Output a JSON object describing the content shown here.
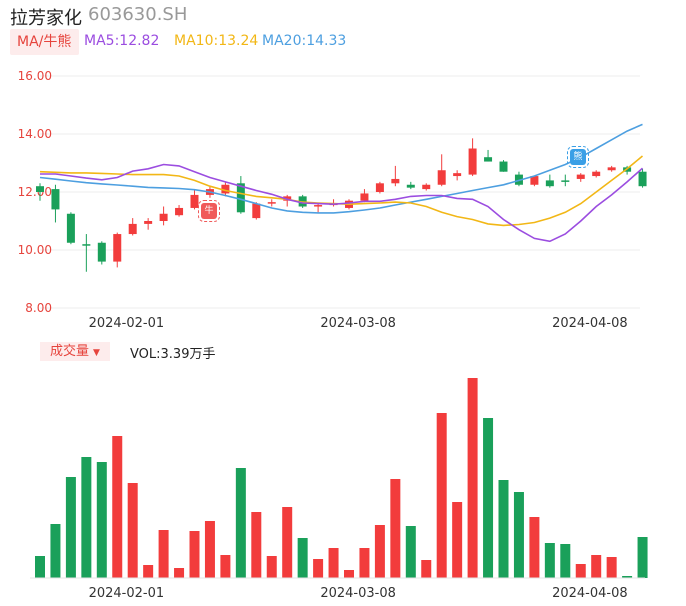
{
  "header": {
    "name": "拉芳家化",
    "code": "603630.SH"
  },
  "ma_bar": {
    "tag_label": "MA/牛熊",
    "items": [
      {
        "label": "MA5:12.82",
        "color": "#9b4de0"
      },
      {
        "label": "MA10:13.24",
        "color": "#f2b716"
      },
      {
        "label": "MA20:14.33",
        "color": "#4d9fe0"
      }
    ]
  },
  "markers": {
    "bull": "牛",
    "bear": "熊"
  },
  "volume_bar": {
    "tag_label": "成交量",
    "vol_text": "VOL:3.39万手"
  },
  "colors": {
    "up": "#f23c3c",
    "down": "#1aa05a",
    "ma5": "#9b4de0",
    "ma10": "#f2b716",
    "ma20": "#4d9fe0",
    "axis_text": "#e6443d",
    "grid": "#eeeeee"
  },
  "chart_data": {
    "type": "candlestick",
    "y_ticks": [
      "16.00",
      "14.00",
      "12.00",
      "10.00",
      "8.00"
    ],
    "ylim": [
      8,
      16
    ],
    "x_tick_labels": [
      {
        "label": "2024-02-01",
        "index": 3
      },
      {
        "label": "2024-03-08",
        "index": 18
      },
      {
        "label": "2024-04-08",
        "index": 33
      }
    ],
    "candles": [
      {
        "o": 12.2,
        "h": 12.3,
        "l": 11.7,
        "c": 12.0
      },
      {
        "o": 12.1,
        "h": 12.25,
        "l": 10.95,
        "c": 11.4
      },
      {
        "o": 11.25,
        "h": 11.3,
        "l": 10.2,
        "c": 10.25
      },
      {
        "o": 10.2,
        "h": 10.55,
        "l": 9.25,
        "c": 10.15
      },
      {
        "o": 10.25,
        "h": 10.3,
        "l": 9.5,
        "c": 9.6
      },
      {
        "o": 9.6,
        "h": 10.6,
        "l": 9.4,
        "c": 10.55
      },
      {
        "o": 10.55,
        "h": 11.1,
        "l": 10.5,
        "c": 10.9
      },
      {
        "o": 10.9,
        "h": 11.1,
        "l": 10.7,
        "c": 11.0
      },
      {
        "o": 11.0,
        "h": 11.5,
        "l": 10.85,
        "c": 11.25
      },
      {
        "o": 11.2,
        "h": 11.55,
        "l": 11.15,
        "c": 11.45
      },
      {
        "o": 11.45,
        "h": 12.05,
        "l": 11.4,
        "c": 11.9
      },
      {
        "o": 11.9,
        "h": 12.2,
        "l": 11.8,
        "c": 12.1
      },
      {
        "o": 11.95,
        "h": 12.35,
        "l": 11.85,
        "c": 12.25
      },
      {
        "o": 12.3,
        "h": 12.55,
        "l": 11.25,
        "c": 11.3
      },
      {
        "o": 11.1,
        "h": 11.65,
        "l": 11.05,
        "c": 11.6
      },
      {
        "o": 11.6,
        "h": 11.75,
        "l": 11.5,
        "c": 11.65
      },
      {
        "o": 11.7,
        "h": 11.9,
        "l": 11.5,
        "c": 11.85
      },
      {
        "o": 11.85,
        "h": 11.9,
        "l": 11.45,
        "c": 11.5
      },
      {
        "o": 11.5,
        "h": 11.6,
        "l": 11.3,
        "c": 11.55
      },
      {
        "o": 11.55,
        "h": 11.75,
        "l": 11.5,
        "c": 11.6
      },
      {
        "o": 11.45,
        "h": 11.75,
        "l": 11.4,
        "c": 11.7
      },
      {
        "o": 11.7,
        "h": 12.1,
        "l": 11.65,
        "c": 11.95
      },
      {
        "o": 12.0,
        "h": 12.35,
        "l": 11.95,
        "c": 12.3
      },
      {
        "o": 12.3,
        "h": 12.9,
        "l": 12.2,
        "c": 12.45
      },
      {
        "o": 12.25,
        "h": 12.35,
        "l": 12.1,
        "c": 12.15
      },
      {
        "o": 12.1,
        "h": 12.3,
        "l": 12.05,
        "c": 12.25
      },
      {
        "o": 12.25,
        "h": 13.3,
        "l": 12.2,
        "c": 12.75
      },
      {
        "o": 12.55,
        "h": 12.75,
        "l": 12.4,
        "c": 12.65
      },
      {
        "o": 12.6,
        "h": 13.85,
        "l": 12.55,
        "c": 13.5
      },
      {
        "o": 13.2,
        "h": 13.45,
        "l": 13.05,
        "c": 13.05
      },
      {
        "o": 13.05,
        "h": 13.1,
        "l": 12.7,
        "c": 12.7
      },
      {
        "o": 12.6,
        "h": 12.7,
        "l": 12.2,
        "c": 12.25
      },
      {
        "o": 12.25,
        "h": 12.55,
        "l": 12.2,
        "c": 12.55
      },
      {
        "o": 12.4,
        "h": 12.6,
        "l": 12.15,
        "c": 12.2
      },
      {
        "o": 12.4,
        "h": 12.6,
        "l": 12.2,
        "c": 12.35
      },
      {
        "o": 12.45,
        "h": 12.65,
        "l": 12.35,
        "c": 12.6
      },
      {
        "o": 12.55,
        "h": 12.75,
        "l": 12.5,
        "c": 12.7
      },
      {
        "o": 12.75,
        "h": 12.9,
        "l": 12.7,
        "c": 12.85
      },
      {
        "o": 12.85,
        "h": 12.9,
        "l": 12.6,
        "c": 12.7
      },
      {
        "o": 12.7,
        "h": 12.8,
        "l": 12.15,
        "c": 12.2
      }
    ],
    "ma5": [
      12.62,
      12.62,
      12.55,
      12.48,
      12.42,
      12.5,
      12.72,
      12.8,
      12.95,
      12.9,
      12.7,
      12.5,
      12.35,
      12.2,
      12.05,
      11.92,
      11.75,
      11.62,
      11.6,
      11.58,
      11.62,
      11.68,
      11.68,
      11.75,
      11.85,
      11.88,
      11.88,
      11.78,
      11.75,
      11.5,
      11.05,
      10.7,
      10.4,
      10.3,
      10.55,
      11.0,
      11.5,
      11.9,
      12.35,
      12.82
    ],
    "ma10": [
      12.7,
      12.68,
      12.66,
      12.66,
      12.64,
      12.62,
      12.6,
      12.6,
      12.6,
      12.55,
      12.4,
      12.2,
      12.05,
      11.95,
      11.85,
      11.8,
      11.75,
      11.65,
      11.62,
      11.6,
      11.58,
      11.6,
      11.62,
      11.65,
      11.62,
      11.5,
      11.3,
      11.15,
      11.05,
      10.9,
      10.85,
      10.88,
      10.95,
      11.1,
      11.3,
      11.6,
      12.0,
      12.4,
      12.8,
      13.24
    ],
    "ma20": [
      12.5,
      12.44,
      12.38,
      12.32,
      12.28,
      12.24,
      12.2,
      12.16,
      12.14,
      12.12,
      12.08,
      12.0,
      11.88,
      11.75,
      11.6,
      11.45,
      11.35,
      11.3,
      11.28,
      11.28,
      11.32,
      11.38,
      11.45,
      11.55,
      11.65,
      11.75,
      11.85,
      11.95,
      12.05,
      12.15,
      12.25,
      12.4,
      12.55,
      12.75,
      12.95,
      13.2,
      13.5,
      13.8,
      14.1,
      14.33
    ],
    "volumes": [
      22,
      54,
      101,
      121,
      116,
      142,
      95,
      13,
      48,
      10,
      47,
      57,
      23,
      110,
      66,
      22,
      71,
      40,
      19,
      30,
      8,
      30,
      53,
      99,
      52,
      18,
      165,
      76,
      200,
      160,
      98,
      86,
      61,
      35,
      34,
      14,
      23,
      21,
      2,
      41
    ]
  }
}
